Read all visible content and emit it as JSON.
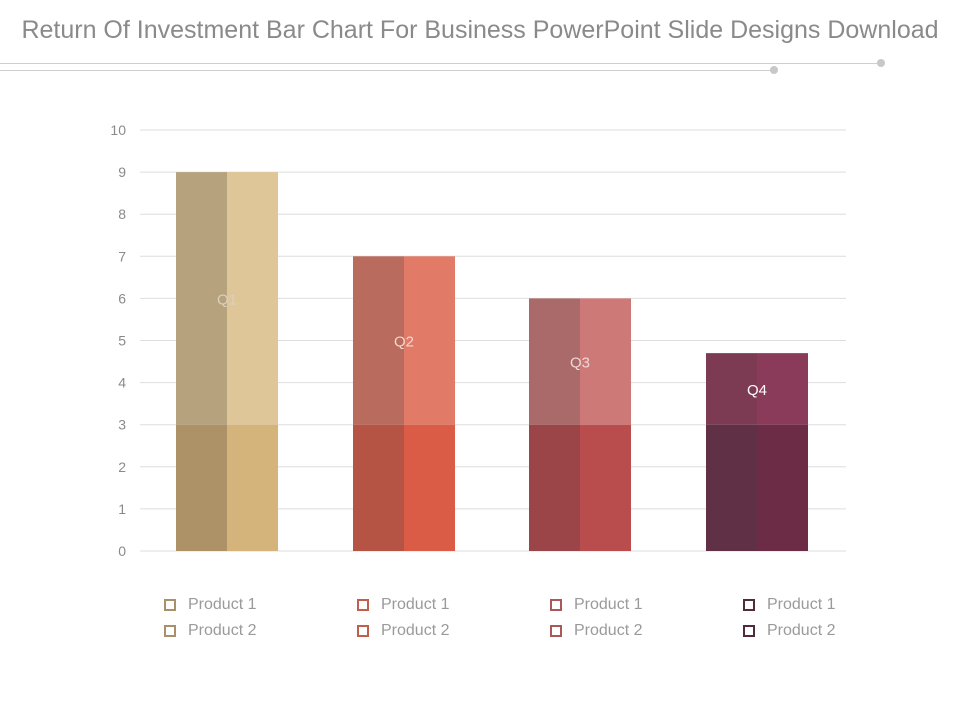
{
  "title": "Return Of Investment Bar Chart For Business PowerPoint Slide Designs Download",
  "chart_data": {
    "type": "bar",
    "categories": [
      "Q1",
      "Q2",
      "Q3",
      "Q4"
    ],
    "series": [
      {
        "name": "Product 1",
        "values": [
          3,
          3,
          3,
          3
        ]
      },
      {
        "name": "Product 2",
        "values": [
          6,
          4,
          3,
          1.7
        ]
      }
    ],
    "stacked": true,
    "bar_labels": [
      "Q1",
      "Q2",
      "Q3",
      "Q4"
    ],
    "yticks": [
      "0",
      "1",
      "2",
      "3",
      "4",
      "5",
      "6",
      "7",
      "8",
      "9",
      "10"
    ],
    "ylim": [
      0,
      10
    ],
    "grid": true,
    "colors": [
      {
        "bottom_left": "#ad9268",
        "bottom_right": "#d4b47b",
        "top_left": "#b7a27e",
        "top_right": "#dfc699",
        "label": "#d9d0c0",
        "legend": "#a8916a"
      },
      {
        "bottom_left": "#b55444",
        "bottom_right": "#da5b46",
        "top_left": "#b96b5d",
        "top_right": "#e17a67",
        "label": "#f3d6cf",
        "legend": "#c05f4c"
      },
      {
        "bottom_left": "#9c4549",
        "bottom_right": "#b94c4c",
        "top_left": "#a96a69",
        "top_right": "#cd7978",
        "label": "#f1d6d6",
        "legend": "#a9595a"
      },
      {
        "bottom_left": "#5f3046",
        "bottom_right": "#6d2c45",
        "top_left": "#7c3b53",
        "top_right": "#8a3b5a",
        "label": "#ffffff",
        "legend": "#4f2b3c"
      }
    ]
  },
  "legend": [
    {
      "items": [
        "Product 1",
        "Product 2"
      ]
    },
    {
      "items": [
        "Product 1",
        "Product 2"
      ]
    },
    {
      "items": [
        "Product 1",
        "Product 2"
      ]
    },
    {
      "items": [
        "Product 1",
        "Product 2"
      ]
    }
  ]
}
